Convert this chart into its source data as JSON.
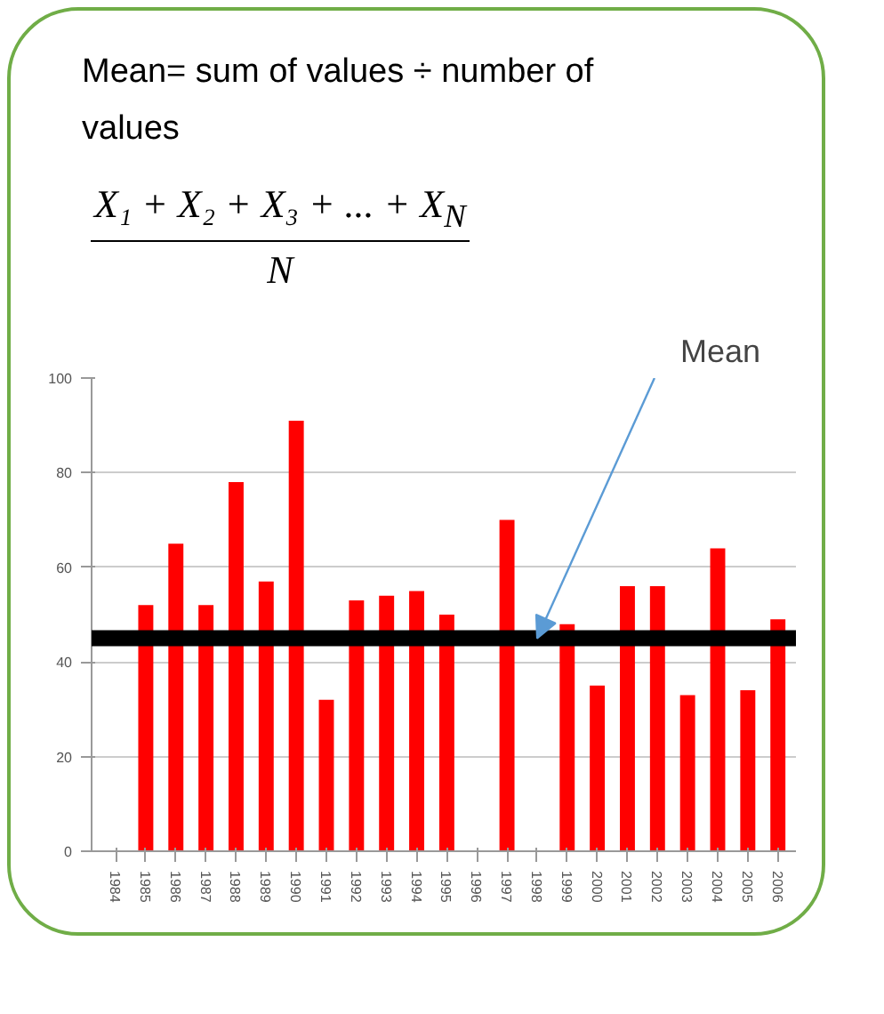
{
  "chart_data": {
    "type": "bar",
    "title": "Mean= sum of values ÷ number of values",
    "annotations": [
      "X₁ + X₂ + X₃ + ... + X$_{N}$",
      "N"
    ],
    "categories": [
      "1984",
      "1985",
      "1986",
      "1987",
      "1988",
      "1989",
      "1990",
      "1991",
      "1992",
      "1993",
      "1994",
      "1995",
      "1996",
      "1997",
      "1998",
      "1999",
      "2000",
      "2001",
      "2002",
      "2003",
      "2004",
      "2005",
      "2006"
    ],
    "values": [
      null,
      52,
      65,
      52,
      78,
      57,
      91,
      32,
      53,
      54,
      55,
      50,
      null,
      70,
      null,
      48,
      35,
      56,
      56,
      33,
      64,
      34,
      49
    ],
    "color": "#ff0000",
    "ylim": [
      0,
      100
    ],
    "yticks": [
      0,
      20,
      40,
      60,
      80,
      100
    ],
    "grid": "y",
    "ref_lines": [
      {
        "axis": "y",
        "value": 45,
        "label": "Mean",
        "color": "#000000"
      }
    ]
  }
}
